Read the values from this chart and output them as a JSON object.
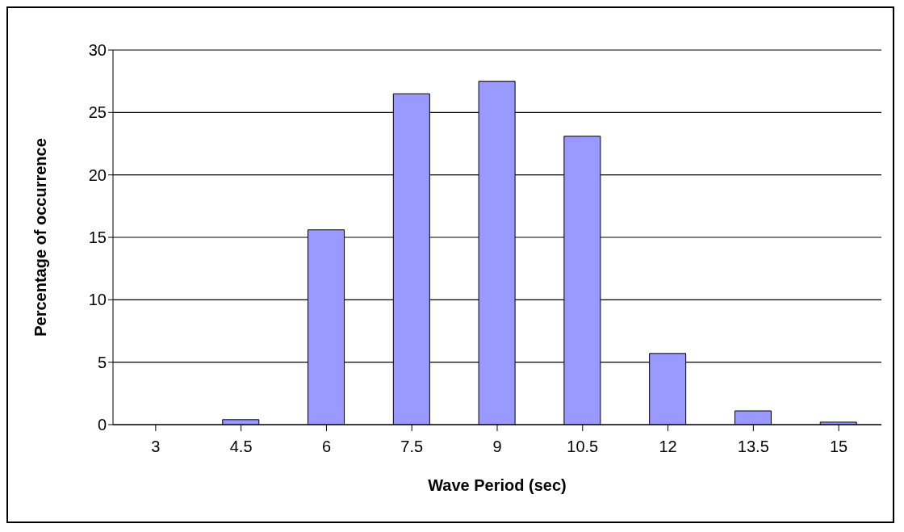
{
  "chart_data": {
    "type": "bar",
    "xlabel": "Wave Period (sec)",
    "ylabel": "Percentage of occurrence",
    "categories": [
      "3",
      "4.5",
      "6",
      "7.5",
      "9",
      "10.5",
      "12",
      "13.5",
      "15"
    ],
    "values": [
      0,
      0.4,
      15.6,
      26.5,
      27.5,
      23.1,
      5.7,
      1.1,
      0.2
    ],
    "color": "#9999ff",
    "ylim": [
      0,
      30
    ],
    "yticks": [
      0,
      5,
      10,
      15,
      20,
      25,
      30
    ],
    "grid": "y",
    "legend": false
  }
}
